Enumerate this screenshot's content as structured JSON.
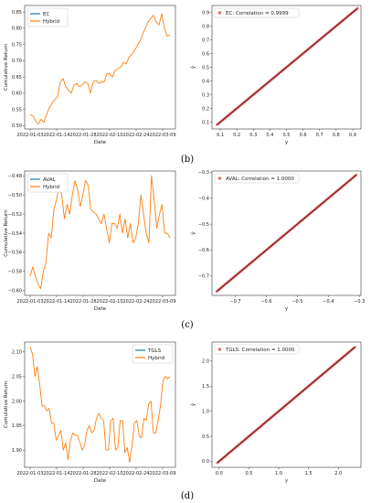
{
  "colors": {
    "series_primary": "#1f77b4",
    "series_hybrid": "#ff7f0e",
    "scatter": "#d62728",
    "fit_line": "#000000"
  },
  "panels": [
    {
      "label": "(b)"
    },
    {
      "label": "(c)"
    },
    {
      "label": "(d)"
    }
  ],
  "chart_data": [
    {
      "type": "line",
      "xlabel": "Date",
      "ylabel": "Cumulative Return",
      "x_ticks": [
        "2022-01-03",
        "2022-01-14",
        "2022-01-28",
        "2022-02-10",
        "2022-02-24",
        "2022-03-09"
      ],
      "ylim": [
        0.49,
        0.87
      ],
      "y_ticks": [
        0.5,
        0.55,
        0.6,
        0.65,
        0.7,
        0.75,
        0.8,
        0.85
      ],
      "y_tick_labels": [
        "0.50",
        "0.55",
        "0.60",
        "0.65",
        "0.70",
        "0.75",
        "0.80",
        "0.85"
      ],
      "legend": "upper left",
      "series": [
        {
          "name": "EC",
          "color": "#1f77b4",
          "values": []
        },
        {
          "name": "Hybrid",
          "color": "#ff7f0e",
          "values": [
            0.535,
            0.53,
            0.515,
            0.505,
            0.52,
            0.51,
            0.535,
            0.555,
            0.57,
            0.58,
            0.59,
            0.635,
            0.645,
            0.62,
            0.61,
            0.6,
            0.625,
            0.63,
            0.62,
            0.625,
            0.635,
            0.63,
            0.6,
            0.635,
            0.64,
            0.63,
            0.635,
            0.635,
            0.66,
            0.66,
            0.65,
            0.67,
            0.675,
            0.68,
            0.695,
            0.69,
            0.71,
            0.72,
            0.73,
            0.745,
            0.76,
            0.78,
            0.8,
            0.82,
            0.83,
            0.84,
            0.82,
            0.81,
            0.845,
            0.8,
            0.775,
            0.78
          ]
        }
      ]
    },
    {
      "type": "scatter",
      "xlabel": "y",
      "ylabel": "ŷ",
      "xlim": [
        0.05,
        0.95
      ],
      "ylim": [
        0.05,
        0.95
      ],
      "x_ticks": [
        0.1,
        0.2,
        0.3,
        0.4,
        0.5,
        0.6,
        0.7,
        0.8,
        0.9
      ],
      "x_tick_labels": [
        "0.1",
        "0.2",
        "0.3",
        "0.4",
        "0.5",
        "0.6",
        "0.7",
        "0.8",
        "0.9"
      ],
      "y_ticks": [
        0.1,
        0.2,
        0.3,
        0.4,
        0.5,
        0.6,
        0.7,
        0.8,
        0.9
      ],
      "y_tick_labels": [
        "0.1",
        "0.2",
        "0.3",
        "0.4",
        "0.5",
        "0.6",
        "0.7",
        "0.8",
        "0.9"
      ],
      "legend_label": "EC: Correlation = 0.9999",
      "legend": "upper left",
      "points_range": [
        0.08,
        0.93
      ]
    },
    {
      "type": "line",
      "xlabel": "Date",
      "ylabel": "Cumulative Return",
      "x_ticks": [
        "2022-01-03",
        "2022-01-14",
        "2022-01-28",
        "2022-02-10",
        "2022-02-24",
        "2022-03-09"
      ],
      "ylim": [
        -0.605,
        -0.475
      ],
      "y_ticks": [
        -0.48,
        -0.5,
        -0.52,
        -0.54,
        -0.56,
        -0.58,
        -0.6
      ],
      "y_tick_labels": [
        "−0.48",
        "−0.50",
        "−0.52",
        "−0.54",
        "−0.56",
        "−0.58",
        "−0.60"
      ],
      "legend": "upper left",
      "series": [
        {
          "name": "AVAL",
          "color": "#1f77b4",
          "values": []
        },
        {
          "name": "Hybrid",
          "color": "#ff7f0e",
          "values": [
            -0.585,
            -0.575,
            -0.585,
            -0.593,
            -0.598,
            -0.58,
            -0.57,
            -0.54,
            -0.545,
            -0.515,
            -0.505,
            -0.49,
            -0.5,
            -0.525,
            -0.51,
            -0.52,
            -0.5,
            -0.485,
            -0.495,
            -0.512,
            -0.5,
            -0.485,
            -0.49,
            -0.515,
            -0.518,
            -0.52,
            -0.525,
            -0.53,
            -0.52,
            -0.535,
            -0.55,
            -0.53,
            -0.53,
            -0.535,
            -0.52,
            -0.54,
            -0.525,
            -0.545,
            -0.53,
            -0.55,
            -0.545,
            -0.53,
            -0.5,
            -0.52,
            -0.54,
            -0.55,
            -0.48,
            -0.505,
            -0.535,
            -0.52,
            -0.51,
            -0.54,
            -0.54,
            -0.545
          ]
        }
      ]
    },
    {
      "type": "scatter",
      "xlabel": "y",
      "ylabel": "ŷ",
      "xlim": [
        -0.775,
        -0.295
      ],
      "ylim": [
        -0.775,
        -0.295
      ],
      "x_ticks": [
        -0.7,
        -0.6,
        -0.5,
        -0.4,
        -0.3
      ],
      "x_tick_labels": [
        "−0.7",
        "−0.6",
        "−0.5",
        "−0.4",
        "−0.3"
      ],
      "y_ticks": [
        -0.3,
        -0.4,
        -0.5,
        -0.6,
        -0.7
      ],
      "y_tick_labels": [
        "−0.3",
        "−0.4",
        "−0.5",
        "−0.6",
        "−0.7"
      ],
      "legend_label": "AVAL: Correlation = 1.0000",
      "legend": "upper left",
      "points_range": [
        -0.76,
        -0.31
      ]
    },
    {
      "type": "line",
      "xlabel": "Date",
      "ylabel": "Cumulative Return",
      "x_ticks": [
        "2022-01-03",
        "2022-01-14",
        "2022-01-28",
        "2022-02-10",
        "2022-02-24",
        "2022-03-09"
      ],
      "ylim": [
        1.865,
        2.12
      ],
      "y_ticks": [
        2.1,
        2.05,
        2.0,
        1.95,
        1.9
      ],
      "y_tick_labels": [
        "2.10",
        "2.05",
        "2.00",
        "1.95",
        "1.90"
      ],
      "legend": "upper right",
      "series": [
        {
          "name": "TGLS",
          "color": "#1f77b4",
          "values": []
        },
        {
          "name": "Hybrid",
          "color": "#ff7f0e",
          "values": [
            2.11,
            2.095,
            2.05,
            2.07,
            2.035,
            1.99,
            1.99,
            1.98,
            1.985,
            1.955,
            1.955,
            1.92,
            1.93,
            1.94,
            1.9,
            1.915,
            1.88,
            1.92,
            1.935,
            1.93,
            1.93,
            1.915,
            1.9,
            1.91,
            1.94,
            1.95,
            1.935,
            1.94,
            1.965,
            1.975,
            1.965,
            1.96,
            1.9,
            1.9,
            1.96,
            1.965,
            1.9,
            1.905,
            1.96,
            1.96,
            1.895,
            1.905,
            1.875,
            1.91,
            1.955,
            1.96,
            1.93,
            1.925,
            1.965,
            1.96,
            1.995,
            2.0,
            1.935,
            1.935,
            1.96,
            1.99,
            2.04,
            2.05,
            2.045,
            2.05
          ]
        }
      ]
    },
    {
      "type": "scatter",
      "xlabel": "y",
      "ylabel": "ŷ",
      "xlim": [
        -0.12,
        2.38
      ],
      "ylim": [
        -0.12,
        2.38
      ],
      "x_ticks": [
        0.0,
        0.5,
        1.0,
        1.5,
        2.0
      ],
      "x_tick_labels": [
        "0.0",
        "0.5",
        "1.0",
        "1.5",
        "2.0"
      ],
      "y_ticks": [
        0.0,
        0.5,
        1.0,
        1.5,
        2.0
      ],
      "y_tick_labels": [
        "0.0",
        "0.5",
        "1.0",
        "1.5",
        "2.0"
      ],
      "legend_label": "TGLS: Correlation = 1.0000",
      "legend": "upper left",
      "points_range": [
        -0.03,
        2.28
      ]
    }
  ]
}
